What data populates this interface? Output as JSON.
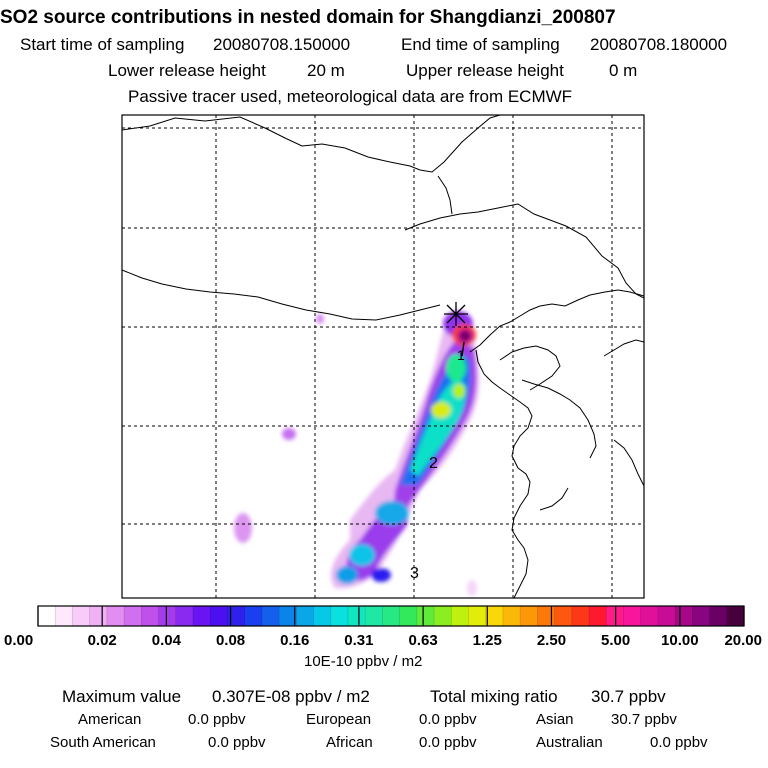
{
  "header": {
    "title": "SO2 source contributions in nested domain for Shangdianzi_200807",
    "start_label": "Start time of sampling",
    "start_value": "20080708.150000",
    "end_label": "End time of sampling",
    "end_value": "20080708.180000",
    "lower_label": "Lower release height",
    "lower_value": "20 m",
    "upper_label": "Upper release height",
    "upper_value": "0 m",
    "note": "Passive tracer used, meteorological data are from ECMWF"
  },
  "map": {
    "trajectory_markers": [
      "1",
      "2",
      "3"
    ]
  },
  "colorbar": {
    "tick_labels": [
      "0.00",
      "0.02",
      "0.04",
      "0.08",
      "0.16",
      "0.31",
      "0.63",
      "1.25",
      "2.50",
      "5.00",
      "10.00",
      "20.00"
    ],
    "unit": "10E-10 ppbv / m2",
    "colors": [
      "#ffffff",
      "#fde8fd",
      "#f8ccf8",
      "#f0b0f4",
      "#e28ef0",
      "#d070ee",
      "#bf50ec",
      "#a43cec",
      "#8a2af0",
      "#6a14f4",
      "#4a10f0",
      "#3020ee",
      "#1a3ff0",
      "#1460ec",
      "#0a84e8",
      "#0aa6e8",
      "#08c8e8",
      "#0ae0e0",
      "#10e6c0",
      "#1ee8a4",
      "#26e884",
      "#34e85c",
      "#60ea3a",
      "#8aee20",
      "#bef010",
      "#e2ec08",
      "#f8d808",
      "#fab808",
      "#fc9808",
      "#fc7808",
      "#fc5810",
      "#fc3818",
      "#fe1830",
      "#ff1c8a",
      "#f8169c",
      "#e0109a",
      "#c80c96",
      "#a60888",
      "#880480",
      "#6a0066",
      "#48003c"
    ]
  },
  "stats": {
    "max_label": "Maximum value",
    "max_value": "0.307E-08 ppbv / m2",
    "total_label": "Total mixing ratio",
    "total_value": "30.7 ppbv",
    "regions": [
      {
        "name": "American",
        "value": "0.0 ppbv"
      },
      {
        "name": "European",
        "value": "0.0 ppbv"
      },
      {
        "name": "Asian",
        "value": "30.7 ppbv"
      },
      {
        "name": "South American",
        "value": "0.0 ppbv"
      },
      {
        "name": "African",
        "value": "0.0 ppbv"
      },
      {
        "name": "Australian",
        "value": "0.0 ppbv"
      }
    ]
  }
}
